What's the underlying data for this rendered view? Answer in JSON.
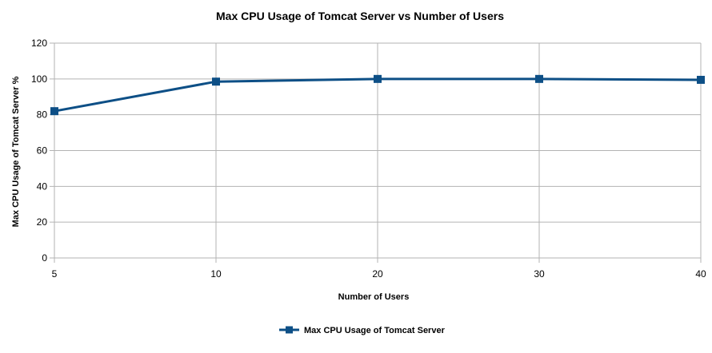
{
  "chart_data": {
    "type": "line",
    "title": "Max CPU Usage of Tomcat Server vs Number of Users",
    "xlabel": "Number of Users",
    "ylabel": "Max CPU Usage of Tomcat Server %",
    "categories": [
      "5",
      "10",
      "20",
      "30",
      "40"
    ],
    "series": [
      {
        "name": "Max CPU Usage of Tomcat Server",
        "values": [
          82,
          98.5,
          100,
          100,
          99.5
        ],
        "color": "#0d4f86"
      }
    ],
    "ylim": [
      0,
      120
    ],
    "yticks": [
      0,
      20,
      40,
      60,
      80,
      100,
      120
    ],
    "grid": true,
    "legend_position": "bottom",
    "colors": {
      "grid": "#b3b3b3",
      "series": "#0d4f86"
    }
  }
}
